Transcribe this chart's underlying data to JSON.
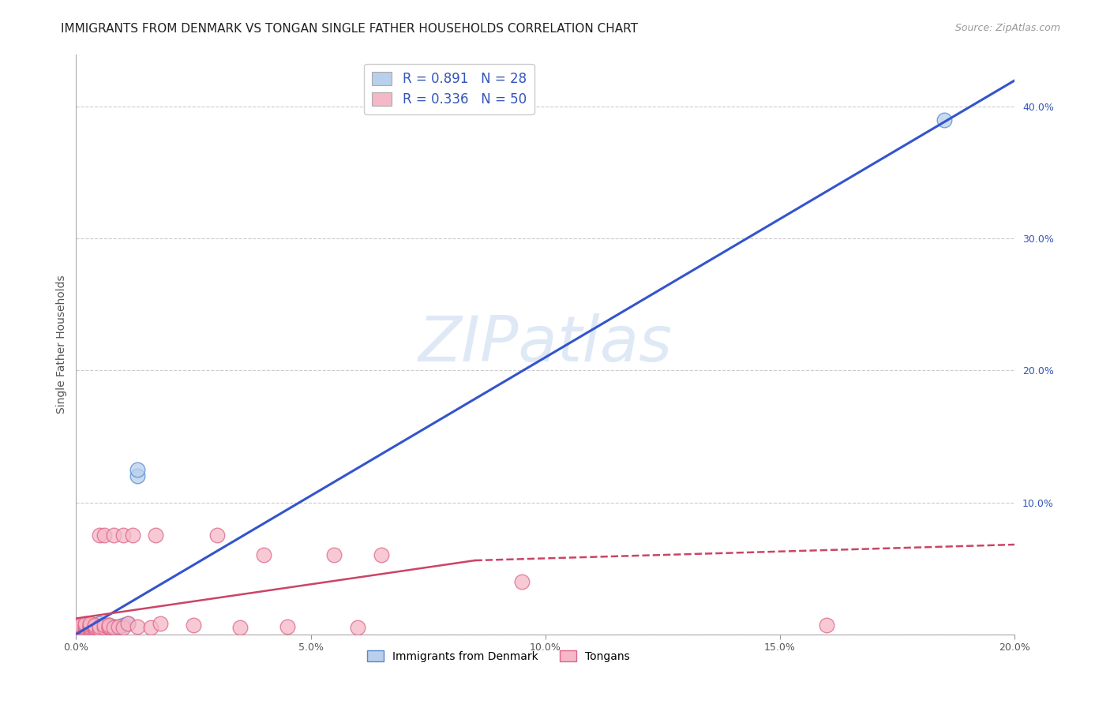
{
  "title": "IMMIGRANTS FROM DENMARK VS TONGAN SINGLE FATHER HOUSEHOLDS CORRELATION CHART",
  "source": "Source: ZipAtlas.com",
  "ylabel": "Single Father Households",
  "watermark": "ZIPatlas",
  "xlim": [
    0.0,
    0.2
  ],
  "ylim": [
    0.0,
    0.44
  ],
  "x_ticks": [
    0.0,
    0.05,
    0.1,
    0.15,
    0.2
  ],
  "x_tick_labels": [
    "0.0%",
    "5.0%",
    "10.0%",
    "15.0%",
    "20.0%"
  ],
  "y_ticks_right": [
    0.0,
    0.1,
    0.2,
    0.3,
    0.4
  ],
  "y_tick_labels_right": [
    "",
    "10.0%",
    "20.0%",
    "30.0%",
    "40.0%"
  ],
  "legend_entries": [
    {
      "label": "R = 0.891   N = 28",
      "color": "#b8d0ec"
    },
    {
      "label": "R = 0.336   N = 50",
      "color": "#f5b8c8"
    }
  ],
  "legend_text_color": "#3355bb",
  "denmark_scatter": {
    "face_color": "#b8d0ec",
    "edge_color": "#5588cc",
    "x": [
      0.001,
      0.001,
      0.001,
      0.002,
      0.002,
      0.002,
      0.003,
      0.003,
      0.003,
      0.003,
      0.004,
      0.004,
      0.004,
      0.004,
      0.005,
      0.005,
      0.005,
      0.006,
      0.006,
      0.007,
      0.007,
      0.008,
      0.009,
      0.01,
      0.011,
      0.013,
      0.013,
      0.185
    ],
    "y": [
      0.004,
      0.005,
      0.006,
      0.003,
      0.005,
      0.006,
      0.004,
      0.005,
      0.006,
      0.007,
      0.004,
      0.005,
      0.006,
      0.007,
      0.004,
      0.006,
      0.008,
      0.004,
      0.006,
      0.005,
      0.007,
      0.006,
      0.006,
      0.007,
      0.008,
      0.12,
      0.125,
      0.39
    ]
  },
  "tongan_scatter": {
    "face_color": "#f5b8c8",
    "edge_color": "#dd6688",
    "x": [
      0.001,
      0.001,
      0.001,
      0.001,
      0.001,
      0.002,
      0.002,
      0.002,
      0.002,
      0.002,
      0.002,
      0.003,
      0.003,
      0.003,
      0.003,
      0.003,
      0.004,
      0.004,
      0.004,
      0.004,
      0.005,
      0.005,
      0.005,
      0.006,
      0.006,
      0.006,
      0.007,
      0.007,
      0.007,
      0.008,
      0.008,
      0.009,
      0.01,
      0.01,
      0.011,
      0.012,
      0.013,
      0.016,
      0.017,
      0.018,
      0.025,
      0.03,
      0.035,
      0.04,
      0.045,
      0.055,
      0.06,
      0.065,
      0.095,
      0.16
    ],
    "y": [
      0.003,
      0.004,
      0.005,
      0.006,
      0.007,
      0.003,
      0.004,
      0.005,
      0.006,
      0.007,
      0.008,
      0.004,
      0.005,
      0.006,
      0.007,
      0.008,
      0.004,
      0.005,
      0.006,
      0.007,
      0.004,
      0.006,
      0.075,
      0.005,
      0.007,
      0.075,
      0.005,
      0.006,
      0.007,
      0.005,
      0.075,
      0.006,
      0.005,
      0.075,
      0.008,
      0.075,
      0.006,
      0.005,
      0.075,
      0.008,
      0.007,
      0.075,
      0.005,
      0.06,
      0.006,
      0.06,
      0.005,
      0.06,
      0.04,
      0.007
    ]
  },
  "blue_line": {
    "x0": 0.0,
    "y0": 0.0,
    "x1": 0.2,
    "y1": 0.42,
    "color": "#3355cc",
    "linewidth": 2.2
  },
  "pink_line_solid": {
    "x0": 0.0,
    "y0": 0.012,
    "x1": 0.085,
    "y1": 0.056,
    "color": "#cc4466",
    "linewidth": 1.8,
    "linestyle": "-"
  },
  "pink_line_dashed": {
    "x0": 0.085,
    "y0": 0.056,
    "x1": 0.2,
    "y1": 0.068,
    "color": "#cc4466",
    "linewidth": 1.8,
    "linestyle": "--"
  },
  "grid_color": "#cccccc",
  "background_color": "#ffffff",
  "title_fontsize": 11,
  "axis_label_fontsize": 10,
  "tick_fontsize": 9
}
